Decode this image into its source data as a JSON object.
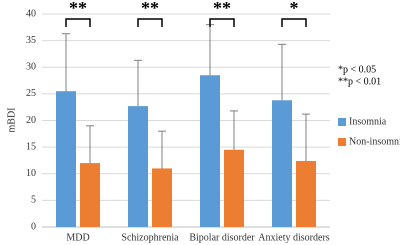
{
  "chart_data": {
    "type": "bar",
    "y_label": "mBDI",
    "categories": [
      "MDD",
      "Schizophrenia",
      "Bipolar disorder",
      "Anxiety disorders"
    ],
    "series": [
      {
        "name": "Insomnia",
        "color": "#5b9bd5",
        "values": [
          25.5,
          22.7,
          28.5,
          23.8
        ],
        "errors": [
          10.8,
          8.6,
          9.5,
          10.5
        ]
      },
      {
        "name": "Non-insomnia",
        "color": "#ed7d31",
        "values": [
          12,
          11,
          14.5,
          12.4
        ],
        "errors": [
          7,
          7,
          7.3,
          8.8
        ]
      }
    ],
    "significance": [
      "**",
      "**",
      "**",
      "*"
    ],
    "notes": [
      "*p < 0.05",
      "**p < 0.01"
    ],
    "ylim": [
      0,
      40
    ],
    "yticks": [
      0,
      5,
      10,
      15,
      20,
      25,
      30,
      35,
      40
    ],
    "grid": true,
    "legend": "right"
  }
}
